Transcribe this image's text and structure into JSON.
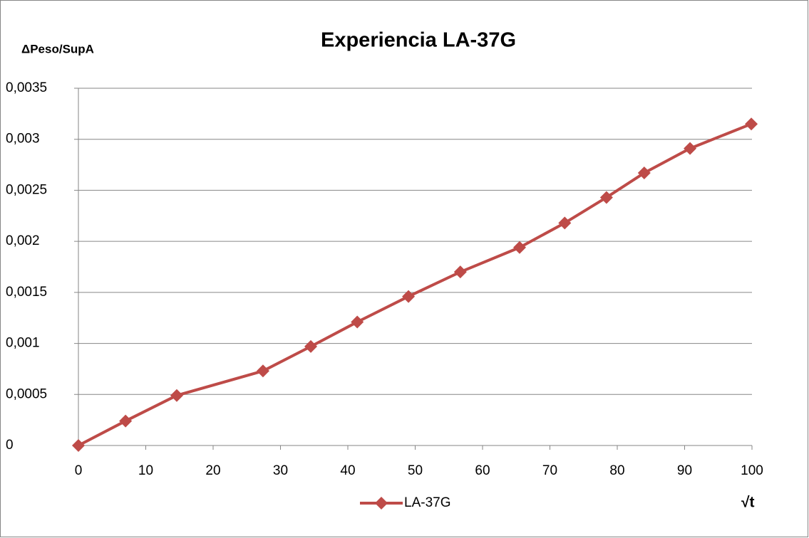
{
  "chart_data": {
    "type": "line",
    "title": "Experiencia LA-37G",
    "y_label": "ΔPeso/SupA",
    "x_label": "√t",
    "series": [
      {
        "name": "LA-37G",
        "color": "#be4b48",
        "x": [
          0,
          7.0,
          14.6,
          27.4,
          34.5,
          41.4,
          49.0,
          56.7,
          65.5,
          72.2,
          78.4,
          84.0,
          90.8,
          99.9
        ],
        "values": [
          0,
          0.00024,
          0.00049,
          0.00073,
          0.00097,
          0.00121,
          0.00146,
          0.0017,
          0.00194,
          0.00218,
          0.00243,
          0.00267,
          0.00291,
          0.00315
        ]
      }
    ],
    "xlim": [
      0,
      100
    ],
    "xticks": [
      0,
      10,
      20,
      30,
      40,
      50,
      60,
      70,
      80,
      90,
      100
    ],
    "ylim": [
      0,
      0.0035
    ],
    "yticks": [
      0,
      {
        "value": 0.0005,
        "label": "0,0005"
      },
      {
        "value": 0.001,
        "label": "0,001"
      },
      {
        "value": 0.0015,
        "label": "0,0015"
      },
      {
        "value": 0.002,
        "label": "0,002"
      },
      {
        "value": 0.0025,
        "label": "0,0025"
      },
      {
        "value": 0.003,
        "label": "0,003"
      },
      {
        "value": 0.0035,
        "label": "0,0035"
      }
    ],
    "grid": true,
    "legend": "bottom"
  }
}
